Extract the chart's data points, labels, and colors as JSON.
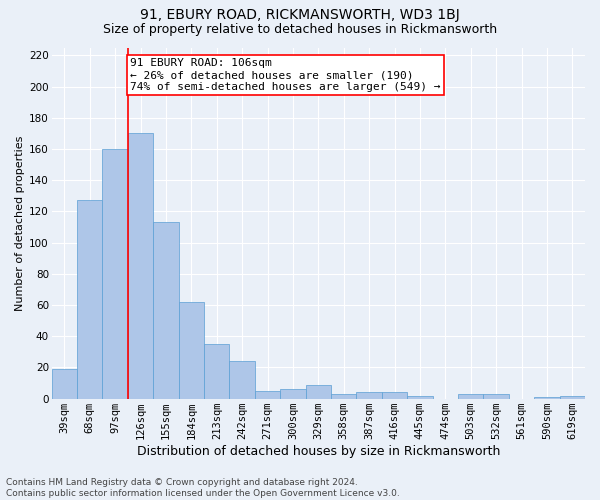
{
  "title": "91, EBURY ROAD, RICKMANSWORTH, WD3 1BJ",
  "subtitle": "Size of property relative to detached houses in Rickmansworth",
  "xlabel": "Distribution of detached houses by size in Rickmansworth",
  "ylabel": "Number of detached properties",
  "footer_line1": "Contains HM Land Registry data © Crown copyright and database right 2024.",
  "footer_line2": "Contains public sector information licensed under the Open Government Licence v3.0.",
  "categories": [
    "39sqm",
    "68sqm",
    "97sqm",
    "126sqm",
    "155sqm",
    "184sqm",
    "213sqm",
    "242sqm",
    "271sqm",
    "300sqm",
    "329sqm",
    "358sqm",
    "387sqm",
    "416sqm",
    "445sqm",
    "474sqm",
    "503sqm",
    "532sqm",
    "561sqm",
    "590sqm",
    "619sqm"
  ],
  "values": [
    19,
    127,
    160,
    170,
    113,
    62,
    35,
    24,
    5,
    6,
    9,
    3,
    4,
    4,
    2,
    0,
    3,
    3,
    0,
    1,
    2
  ],
  "bar_color": "#aec6e8",
  "bar_edge_color": "#5a9fd4",
  "red_line_x": 2.5,
  "annotation_line1": "91 EBURY ROAD: 106sqm",
  "annotation_line2": "← 26% of detached houses are smaller (190)",
  "annotation_line3": "74% of semi-detached houses are larger (549) →",
  "annotation_box_color": "white",
  "annotation_box_edge_color": "red",
  "red_line_color": "red",
  "ylim": [
    0,
    225
  ],
  "yticks": [
    0,
    20,
    40,
    60,
    80,
    100,
    120,
    140,
    160,
    180,
    200,
    220
  ],
  "bg_color": "#eaf0f8",
  "grid_color": "white",
  "title_fontsize": 10,
  "subtitle_fontsize": 9,
  "xlabel_fontsize": 9,
  "ylabel_fontsize": 8,
  "tick_fontsize": 7.5,
  "annotation_fontsize": 8,
  "footer_fontsize": 6.5
}
